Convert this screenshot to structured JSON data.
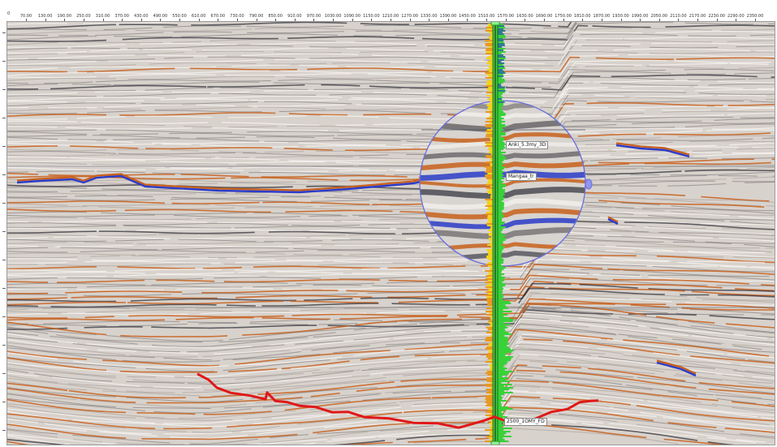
{
  "axis": {
    "origin_label": "0",
    "x_ticks": [
      "70.00",
      "130.00",
      "190.00",
      "250.00",
      "310.00",
      "370.00",
      "430.00",
      "490.00",
      "550.00",
      "610.00",
      "670.00",
      "730.00",
      "790.00",
      "850.00",
      "910.00",
      "970.00",
      "1030.00",
      "1090.00",
      "1150.00",
      "1210.00",
      "1270.00",
      "1330.00",
      "1390.00",
      "1450.00",
      "1510.00",
      "1570.00",
      "1630.00",
      "1690.00",
      "1750.00",
      "1810.00",
      "1870.00",
      "1930.00",
      "1990.00",
      "2050.00",
      "2110.00",
      "2170.00",
      "2230.00",
      "2290.00",
      "2350.00"
    ]
  },
  "well": {
    "name_top": "",
    "horizon_labels": [
      "Anki_5.3my_3D",
      "Mangaa_tr"
    ],
    "bottom_label": "2500_1OMY_FD"
  },
  "colors": {
    "peak": "#c8601c",
    "trough": "#2c3cc8",
    "interpreted_horizon": "#e01818",
    "log_green": "#39d139",
    "log_yellow": "#f2d21a",
    "magnifier_ring": "#6a6fdc"
  },
  "tools": {
    "magnifier": "magnifier-lens-icon"
  }
}
